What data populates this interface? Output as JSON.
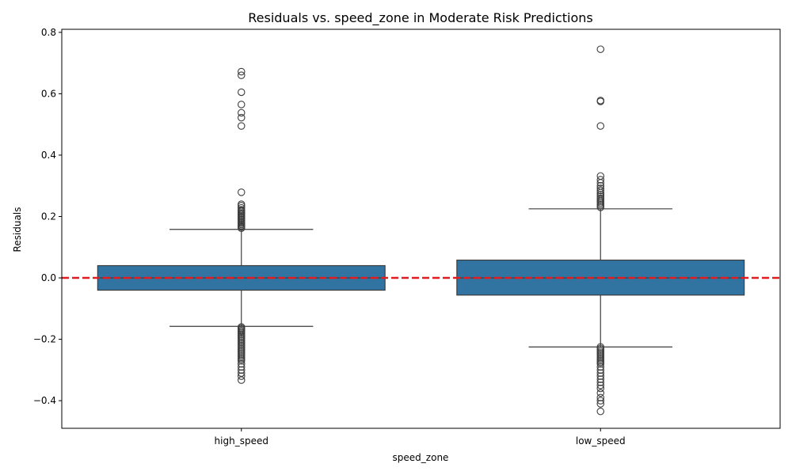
{
  "chart_data": {
    "type": "box",
    "title": "Residuals vs. speed_zone in Moderate Risk Predictions",
    "xlabel": "speed_zone",
    "ylabel": "Residuals",
    "categories": [
      "high_speed",
      "low_speed"
    ],
    "ylim": [
      -0.49,
      0.81
    ],
    "yticks": [
      -0.4,
      -0.2,
      0.0,
      0.2,
      0.4,
      0.6,
      0.8
    ],
    "ytick_labels": [
      "−0.4",
      "−0.2",
      "0.0",
      "0.2",
      "0.4",
      "0.6",
      "0.8"
    ],
    "box_color": "#3274a1",
    "reference_line": {
      "y": 0.0,
      "color": "#e41a1c",
      "style": "dashed"
    },
    "grid": false,
    "boxes": [
      {
        "category": "high_speed",
        "whisker_low": -0.158,
        "q1": -0.04,
        "median": 0.0,
        "q3": 0.04,
        "whisker_high": 0.158,
        "outliers": [
          0.672,
          0.66,
          0.605,
          0.565,
          0.538,
          0.522,
          0.495,
          0.279,
          0.24,
          0.235,
          0.228,
          0.222,
          0.218,
          0.214,
          0.21,
          0.206,
          0.202,
          0.198,
          0.194,
          0.19,
          0.186,
          0.182,
          0.178,
          0.174,
          0.17,
          0.166,
          0.162,
          -0.16,
          -0.164,
          -0.168,
          -0.172,
          -0.176,
          -0.18,
          -0.185,
          -0.19,
          -0.195,
          -0.2,
          -0.205,
          -0.21,
          -0.215,
          -0.22,
          -0.225,
          -0.23,
          -0.235,
          -0.24,
          -0.245,
          -0.25,
          -0.255,
          -0.26,
          -0.265,
          -0.27,
          -0.28,
          -0.29,
          -0.3,
          -0.31,
          -0.32,
          -0.333
        ]
      },
      {
        "category": "low_speed",
        "whisker_low": -0.225,
        "q1": -0.056,
        "median": 0.0,
        "q3": 0.058,
        "whisker_high": 0.225,
        "outliers": [
          0.745,
          0.578,
          0.575,
          0.495,
          0.332,
          0.32,
          0.31,
          0.3,
          0.292,
          0.285,
          0.278,
          0.272,
          0.266,
          0.26,
          0.255,
          0.25,
          0.245,
          0.24,
          0.235,
          0.23,
          -0.225,
          -0.23,
          -0.235,
          -0.24,
          -0.245,
          -0.25,
          -0.255,
          -0.26,
          -0.265,
          -0.27,
          -0.275,
          -0.28,
          -0.29,
          -0.3,
          -0.31,
          -0.32,
          -0.33,
          -0.34,
          -0.35,
          -0.36,
          -0.375,
          -0.39,
          -0.4,
          -0.41,
          -0.435
        ]
      }
    ]
  }
}
